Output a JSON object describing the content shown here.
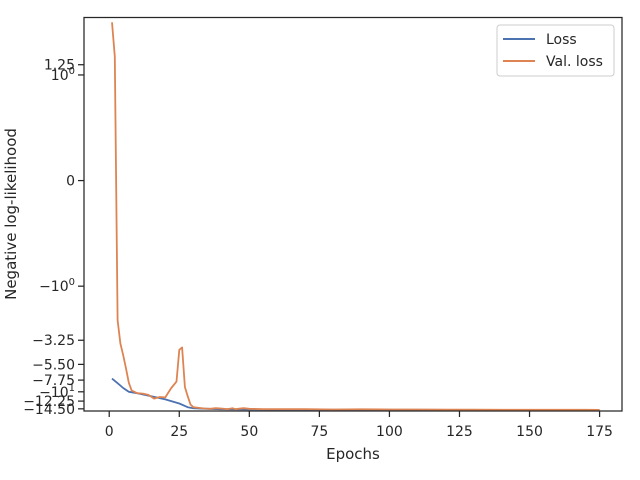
{
  "chart_data": {
    "type": "line",
    "title": "",
    "xlabel": "Epochs",
    "ylabel": "Negative log-likelihood",
    "xlim": [
      -9,
      183
    ],
    "x_ticks": [
      0,
      25,
      50,
      75,
      100,
      125,
      150,
      175
    ],
    "y_ticks": [
      {
        "value": 1.25,
        "label": "1.25"
      },
      {
        "value": 1,
        "label": "10^0"
      },
      {
        "value": 0,
        "label": "0"
      },
      {
        "value": -1,
        "label": "-10^0"
      },
      {
        "value": -3.25,
        "label": "-3.25"
      },
      {
        "value": -5.5,
        "label": "-5.50"
      },
      {
        "value": -7.75,
        "label": "-7.75"
      },
      {
        "value": -10,
        "label": "-10^1"
      },
      {
        "value": -12.25,
        "label": "-12.25"
      },
      {
        "value": -14.5,
        "label": "-14.50"
      }
    ],
    "y_scale": "symlog",
    "y_linthresh": 1,
    "ylim": [
      -15.2,
      3.5
    ],
    "grid": false,
    "legend_position": "upper right",
    "series": [
      {
        "name": "Loss",
        "color": "#4c72b0",
        "x": [
          1,
          3,
          5,
          7,
          10,
          15,
          20,
          25,
          28,
          30,
          35,
          40,
          45,
          50,
          60,
          80,
          100,
          125,
          150,
          175
        ],
        "y": [
          -7.5,
          -8.3,
          -9.2,
          -10.0,
          -10.3,
          -11.0,
          -11.8,
          -12.9,
          -14.0,
          -14.3,
          -14.5,
          -14.6,
          -14.65,
          -14.7,
          -14.75,
          -14.8,
          -14.8,
          -14.85,
          -14.85,
          -14.9
        ]
      },
      {
        "name": "Val. loss",
        "color": "#dd8452",
        "x": [
          1,
          2,
          3,
          4,
          5,
          6,
          7,
          8,
          9,
          10,
          12,
          14,
          16,
          18,
          20,
          22,
          24,
          25,
          26,
          27,
          28,
          29,
          30,
          32,
          34,
          36,
          38,
          40,
          42,
          44,
          45,
          46,
          48,
          50,
          55,
          60,
          65,
          70,
          80,
          90,
          100,
          110,
          120,
          130,
          140,
          150,
          160,
          170,
          175
        ],
        "y": [
          3.15,
          1.5,
          -2.1,
          -3.5,
          -4.5,
          -6.0,
          -8.2,
          -9.7,
          -10.0,
          -10.3,
          -10.4,
          -10.7,
          -11.6,
          -11.2,
          -11.3,
          -9.3,
          -8.0,
          -4.0,
          -3.8,
          -9.0,
          -11.0,
          -13.2,
          -14.0,
          -14.2,
          -14.4,
          -14.5,
          -14.3,
          -14.4,
          -14.6,
          -14.3,
          -14.6,
          -14.5,
          -14.3,
          -14.5,
          -14.6,
          -14.6,
          -14.6,
          -14.6,
          -14.7,
          -14.65,
          -14.7,
          -14.7,
          -14.75,
          -14.75,
          -14.8,
          -14.8,
          -14.8,
          -14.8,
          -14.85
        ]
      }
    ]
  }
}
